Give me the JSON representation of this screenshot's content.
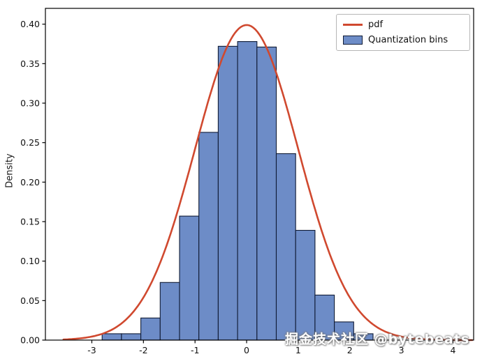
{
  "figure": {
    "background": "#ffffff",
    "watermark": "掘金技术社区 @bytebeats"
  },
  "chart_data": {
    "type": "bar",
    "subtype": "histogram-with-density-line",
    "title": "",
    "xlabel": "",
    "ylabel": "Density",
    "xlim": [
      -3.9,
      4.4
    ],
    "ylim": [
      0,
      0.42
    ],
    "xticks": [
      -3,
      -2,
      -1,
      0,
      1,
      2,
      3,
      4
    ],
    "yticks": [
      0.0,
      0.05,
      0.1,
      0.15,
      0.2,
      0.25,
      0.3,
      0.35,
      0.4
    ],
    "grid": false,
    "legend_position": "upper right",
    "legend": [
      {
        "label": "pdf",
        "type": "line",
        "color": "#d0492f"
      },
      {
        "label": "Quantization bins",
        "type": "patch",
        "color": "#6d8cc7",
        "edge": "#101b35"
      }
    ],
    "histogram": {
      "name": "Quantization bins",
      "bin_start": -2.8,
      "bin_width": 0.375,
      "heights": [
        0.008,
        0.008,
        0.028,
        0.073,
        0.157,
        0.263,
        0.372,
        0.378,
        0.371,
        0.236,
        0.139,
        0.057,
        0.023,
        0.008
      ]
    },
    "pdf": {
      "name": "pdf",
      "distribution": "normal",
      "mean": 0,
      "std": 1,
      "x_start": -3.55,
      "x_end": 4.38,
      "peak": 0.3989
    },
    "axes": {
      "frame_color": "#000000",
      "tick_color": "#000000",
      "tick_label_color": "#111111"
    }
  }
}
